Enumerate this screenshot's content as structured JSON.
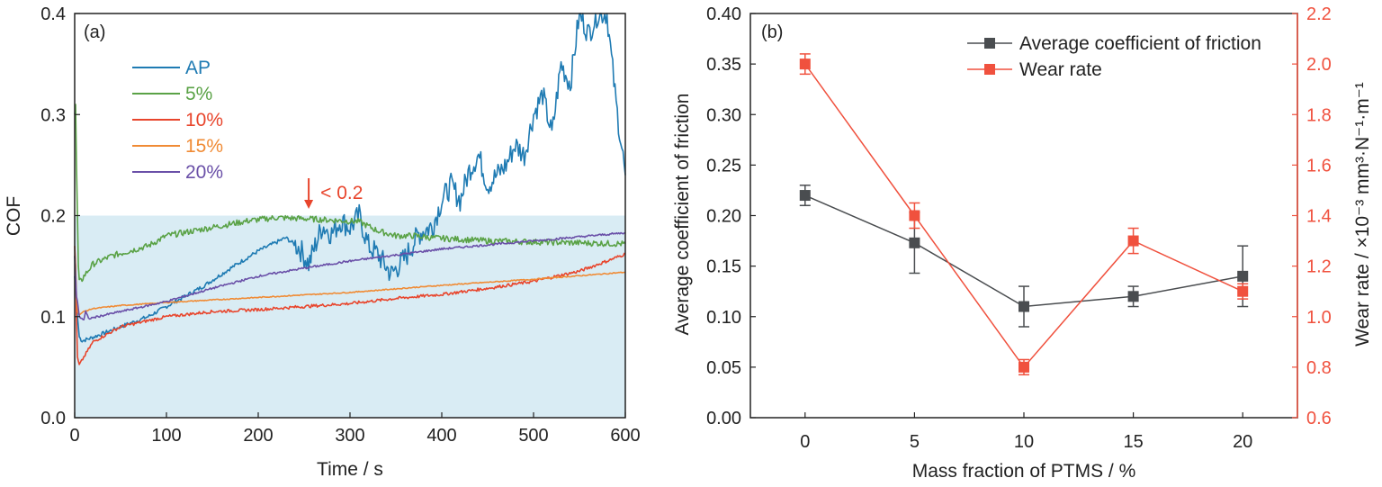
{
  "chart_data": [
    {
      "panel": "(a)",
      "type": "line",
      "xlabel": "Time / s",
      "ylabel": "COF",
      "xlim": [
        0,
        600
      ],
      "ylim": [
        0.0,
        0.4
      ],
      "xticks": [
        "0",
        "100",
        "200",
        "300",
        "400",
        "500",
        "600"
      ],
      "yticks": [
        "0.0",
        "0.1",
        "0.2",
        "0.3",
        "0.4"
      ],
      "shaded_region": {
        "y_from": 0.0,
        "y_to": 0.2,
        "color": "#d9ecf4"
      },
      "annotation": {
        "text": "< 0.2",
        "x": 255,
        "y": 0.2,
        "color": "#e8452c"
      },
      "legend_position": "upper-left",
      "series": [
        {
          "name": "AP",
          "color": "#1f7bb3",
          "noise": 0.002,
          "x": [
            0,
            3,
            5,
            8,
            15,
            30,
            50,
            80,
            110,
            140,
            170,
            200,
            230,
            245,
            255,
            262,
            270,
            280,
            290,
            300,
            310,
            320,
            330,
            345,
            360,
            375,
            390,
            400,
            410,
            420,
            430,
            440,
            450,
            460,
            470,
            480,
            490,
            500,
            510,
            520,
            530,
            540,
            550,
            560,
            570,
            580,
            590,
            600
          ],
          "y": [
            0.14,
            0.1,
            0.08,
            0.076,
            0.078,
            0.083,
            0.09,
            0.1,
            0.115,
            0.13,
            0.148,
            0.165,
            0.178,
            0.168,
            0.152,
            0.17,
            0.19,
            0.182,
            0.195,
            0.188,
            0.2,
            0.17,
            0.162,
            0.142,
            0.158,
            0.182,
            0.19,
            0.215,
            0.23,
            0.215,
            0.245,
            0.26,
            0.23,
            0.24,
            0.25,
            0.27,
            0.26,
            0.3,
            0.32,
            0.28,
            0.35,
            0.33,
            0.4,
            0.38,
            0.4,
            0.4,
            0.31,
            0.24
          ]
        },
        {
          "name": "5%",
          "color": "#5aa246",
          "noise": 0.003,
          "x": [
            0,
            1,
            2,
            3,
            4,
            5,
            7,
            10,
            20,
            40,
            60,
            80,
            100,
            130,
            160,
            190,
            220,
            250,
            270,
            290,
            310,
            330,
            350,
            370,
            390,
            410,
            450,
            500,
            550,
            600
          ],
          "y": [
            0.3,
            0.31,
            0.25,
            0.2,
            0.15,
            0.135,
            0.135,
            0.14,
            0.152,
            0.16,
            0.165,
            0.17,
            0.18,
            0.185,
            0.19,
            0.195,
            0.198,
            0.197,
            0.196,
            0.195,
            0.194,
            0.185,
            0.18,
            0.18,
            0.178,
            0.177,
            0.175,
            0.174,
            0.173,
            0.172
          ]
        },
        {
          "name": "10%",
          "color": "#e8452c",
          "noise": 0.0015,
          "x": [
            0,
            1,
            2,
            3,
            5,
            10,
            20,
            50,
            100,
            150,
            200,
            250,
            300,
            350,
            400,
            450,
            500,
            550,
            580,
            600
          ],
          "y": [
            0.17,
            0.15,
            0.1,
            0.06,
            0.052,
            0.06,
            0.075,
            0.09,
            0.1,
            0.105,
            0.107,
            0.11,
            0.113,
            0.118,
            0.122,
            0.128,
            0.135,
            0.145,
            0.155,
            0.162
          ]
        },
        {
          "name": "15%",
          "color": "#f08b35",
          "noise": 0.0005,
          "x": [
            0,
            1,
            2,
            3,
            5,
            10,
            20,
            50,
            100,
            200,
            300,
            400,
            500,
            600
          ],
          "y": [
            0.16,
            0.15,
            0.12,
            0.105,
            0.102,
            0.105,
            0.108,
            0.111,
            0.114,
            0.119,
            0.124,
            0.131,
            0.137,
            0.144
          ]
        },
        {
          "name": "20%",
          "color": "#6a50a8",
          "noise": 0.001,
          "x": [
            0,
            1,
            2,
            3,
            5,
            10,
            12,
            15,
            25,
            50,
            100,
            150,
            200,
            250,
            300,
            350,
            400,
            450,
            500,
            550,
            600
          ],
          "y": [
            0.16,
            0.14,
            0.12,
            0.115,
            0.1,
            0.097,
            0.105,
            0.098,
            0.1,
            0.105,
            0.115,
            0.128,
            0.14,
            0.148,
            0.155,
            0.161,
            0.167,
            0.171,
            0.175,
            0.179,
            0.183
          ]
        }
      ]
    },
    {
      "panel": "(b)",
      "type": "line",
      "xlabel": "Mass fraction of PTMS / %",
      "ylabel": "Average coefficient of friction",
      "ylabel_right": "Wear rate / ×10⁻³ mm³·N⁻¹·m⁻¹",
      "xlim": [
        -2.5,
        22.5
      ],
      "ylim": [
        0.0,
        0.4
      ],
      "ylim_right": [
        0.6,
        2.2
      ],
      "xticks": [
        "0",
        "5",
        "10",
        "15",
        "20"
      ],
      "x": [
        0,
        5,
        10,
        15,
        20
      ],
      "yticks": [
        "0.00",
        "0.05",
        "0.10",
        "0.15",
        "0.20",
        "0.25",
        "0.30",
        "0.35",
        "0.40"
      ],
      "yticks_right": [
        "0.6",
        "0.8",
        "1.0",
        "1.2",
        "1.4",
        "1.6",
        "1.8",
        "2.0",
        "2.2"
      ],
      "legend_position": "top-right",
      "series": [
        {
          "name": "Average coefficient of friction",
          "color": "#4a4d50",
          "axis": "left",
          "values": [
            0.22,
            0.173,
            0.11,
            0.12,
            0.14
          ],
          "errors": [
            0.01,
            0.03,
            0.02,
            0.01,
            0.03
          ]
        },
        {
          "name": "Wear rate",
          "color": "#f0513e",
          "axis": "right",
          "values": [
            2.0,
            1.4,
            0.8,
            1.3,
            1.1
          ],
          "errors": [
            0.04,
            0.05,
            0.03,
            0.05,
            0.03
          ]
        }
      ]
    }
  ]
}
